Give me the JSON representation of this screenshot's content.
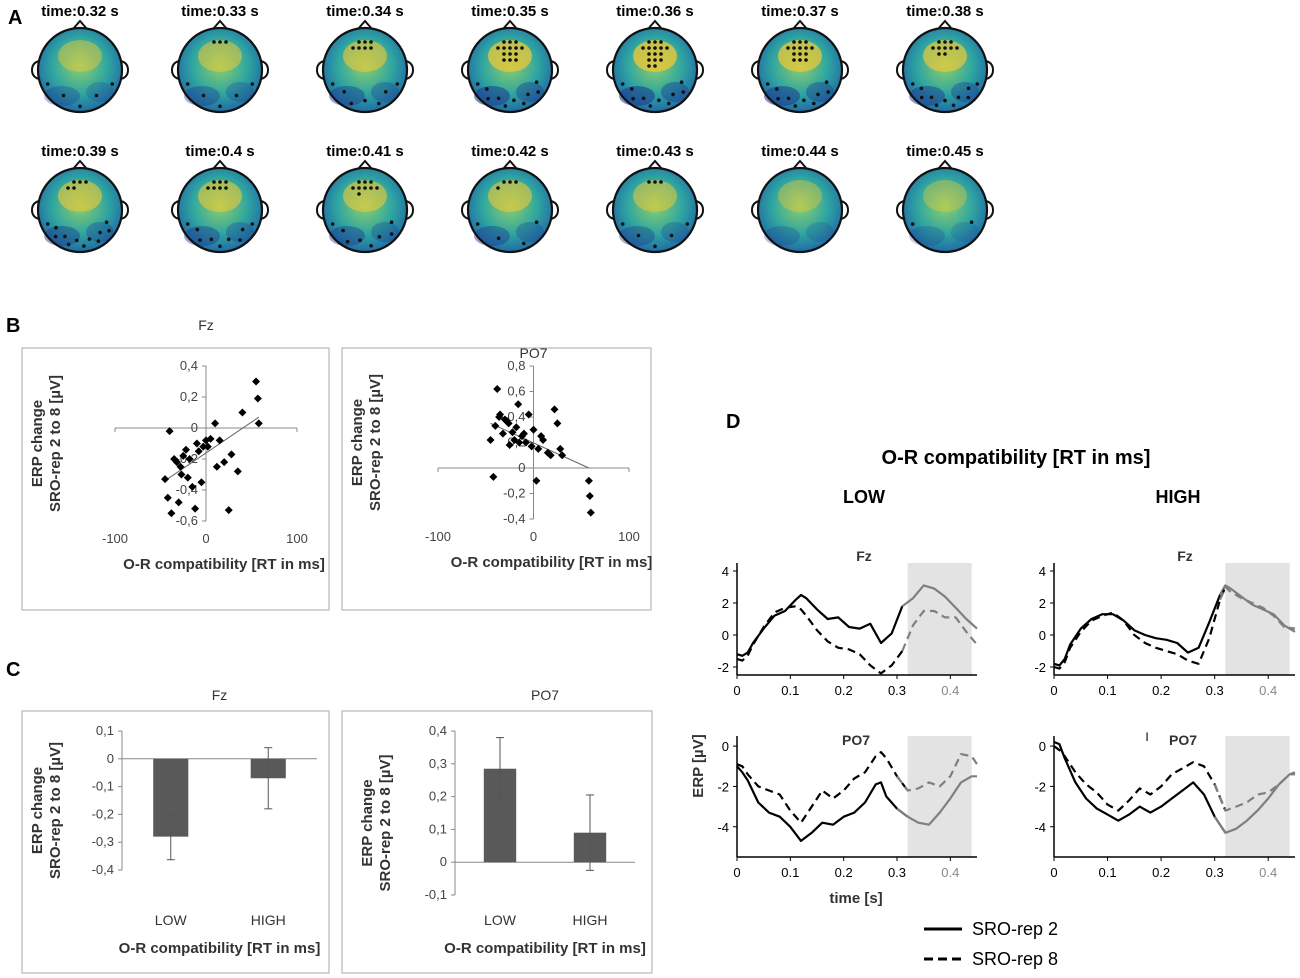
{
  "panel_labels": {
    "a": "A",
    "b": "B",
    "c": "C",
    "d": "D"
  },
  "colors": {
    "bar": "#595959",
    "shade": "#e3e3e3",
    "line": "#000000",
    "gray_line": "#7f7f7f",
    "border": "#aaaaaa",
    "topo_dark": "#1d3a8f",
    "topo_mid": "#2fa6a0",
    "topo_light": "#e8c73a",
    "dot": "#111111"
  },
  "chart_data": [
    {
      "id": "topomaps",
      "type": "heatmap",
      "description_units": "seconds",
      "titles": [
        "time:0.32 s",
        "time:0.33 s",
        "time:0.34 s",
        "time:0.35 s",
        "time:0.36 s",
        "time:0.37 s",
        "time:0.38 s",
        "time:0.39 s",
        "time:0.4 s",
        "time:0.41 s",
        "time:0.42 s",
        "time:0.43 s",
        "time:0.44 s",
        "time:0.45 s"
      ],
      "intensity": [
        0.35,
        0.45,
        0.6,
        0.8,
        0.85,
        0.8,
        0.7,
        0.6,
        0.55,
        0.55,
        0.55,
        0.45,
        0.25,
        0.2
      ],
      "frontal_electrodes": [
        0,
        3,
        7,
        14,
        16,
        14,
        10,
        5,
        7,
        9,
        4,
        3,
        0,
        0
      ],
      "posterior_electrodes": [
        5,
        5,
        7,
        10,
        10,
        10,
        11,
        12,
        9,
        8,
        4,
        5,
        0,
        2
      ]
    },
    {
      "id": "scatter_fz",
      "type": "scatter",
      "title": "Fz",
      "xlabel": "O-R compatibility [RT in ms]",
      "ylabel": [
        "ERP change",
        "SRO-rep 2 to 8 [µV]"
      ],
      "xlim": [
        -100,
        100
      ],
      "ylim": [
        -0.6,
        0.4
      ],
      "xticks": [
        -100,
        0,
        100
      ],
      "xtick_labels": [
        "-100",
        "0",
        "100"
      ],
      "yticks": [
        -0.6,
        -0.4,
        -0.2,
        0,
        0.2,
        0.4
      ],
      "ytick_labels": [
        "-0,6",
        "-0,4",
        "-0,2",
        "0",
        "0,2",
        "0,4"
      ],
      "x": [
        -45,
        -42,
        -40,
        -38,
        -35,
        -32,
        -30,
        -28,
        -27,
        -25,
        -22,
        -20,
        -18,
        -15,
        -12,
        -10,
        -8,
        -5,
        -3,
        0,
        2,
        5,
        10,
        12,
        15,
        20,
        25,
        28,
        35,
        40,
        55,
        57,
        58
      ],
      "y": [
        -0.33,
        -0.45,
        -0.02,
        -0.55,
        -0.2,
        -0.22,
        -0.48,
        -0.25,
        -0.3,
        -0.18,
        -0.14,
        -0.32,
        -0.2,
        -0.38,
        -0.52,
        -0.1,
        -0.15,
        -0.35,
        -0.12,
        -0.08,
        -0.12,
        -0.07,
        0.03,
        -0.25,
        -0.08,
        -0.22,
        -0.53,
        -0.17,
        -0.28,
        0.1,
        0.3,
        0.19,
        0.03
      ],
      "fit": {
        "x": [
          -45,
          58
        ],
        "y": [
          -0.34,
          0.07
        ]
      }
    },
    {
      "id": "scatter_po7",
      "type": "scatter",
      "title": "PO7",
      "xlabel": "O-R compatibility [RT in ms]",
      "ylabel": [
        "ERP change",
        "SRO-rep 2 to 8 [µV]"
      ],
      "xlim": [
        -100,
        100
      ],
      "ylim": [
        -0.4,
        0.8
      ],
      "xticks": [
        -100,
        0,
        100
      ],
      "xtick_labels": [
        "-100",
        "0",
        "100"
      ],
      "yticks": [
        -0.4,
        -0.2,
        0,
        0.2,
        0.4,
        0.6,
        0.8
      ],
      "ytick_labels": [
        "-0,4",
        "-0,2",
        "0",
        "0,2",
        "0,4",
        "0,6",
        "0,8"
      ],
      "x": [
        -45,
        -42,
        -40,
        -38,
        -36,
        -35,
        -32,
        -30,
        -28,
        -26,
        -25,
        -22,
        -20,
        -18,
        -16,
        -15,
        -12,
        -10,
        -8,
        -5,
        -2,
        0,
        3,
        5,
        8,
        10,
        15,
        18,
        22,
        25,
        28,
        30,
        58,
        59,
        60
      ],
      "y": [
        0.22,
        -0.07,
        0.33,
        0.62,
        0.4,
        0.42,
        0.27,
        0.38,
        0.37,
        0.35,
        0.18,
        0.28,
        0.22,
        0.32,
        0.5,
        0.2,
        0.25,
        0.27,
        0.2,
        0.42,
        0.17,
        0.3,
        -0.1,
        0.15,
        0.25,
        0.22,
        0.12,
        0.1,
        0.46,
        0.35,
        0.15,
        0.1,
        -0.1,
        -0.22,
        -0.35
      ],
      "fit": {
        "x": [
          -45,
          58
        ],
        "y": [
          0.35,
          0.0
        ]
      }
    },
    {
      "id": "bars_fz",
      "type": "bar",
      "title": "Fz",
      "xlabel": "O-R compatibility [RT in ms]",
      "ylabel": [
        "ERP change",
        "SRO-rep 2 to 8 [µV]"
      ],
      "categories": [
        "LOW",
        "HIGH"
      ],
      "values": [
        -0.28,
        -0.07
      ],
      "errors": [
        0.083,
        0.11
      ],
      "ylim": [
        -0.4,
        0.1
      ],
      "yticks": [
        -0.4,
        -0.3,
        -0.2,
        -0.1,
        0,
        0.1
      ],
      "ytick_labels": [
        "-0,4",
        "-0,3",
        "-0,2",
        "-0,1",
        "0",
        "0,1"
      ]
    },
    {
      "id": "bars_po7",
      "type": "bar",
      "title": "PO7",
      "xlabel": "O-R compatibility [RT in ms]",
      "ylabel": [
        "ERP change",
        "SRO-rep 2 to 8 [µV]"
      ],
      "categories": [
        "LOW",
        "HIGH"
      ],
      "values": [
        0.285,
        0.09
      ],
      "errors": [
        0.095,
        0.115
      ],
      "ylim": [
        -0.1,
        0.4
      ],
      "yticks": [
        -0.1,
        0,
        0.1,
        0.2,
        0.3,
        0.4
      ],
      "ytick_labels": [
        "-0,1",
        "0",
        "0,1",
        "0,2",
        "0,3",
        "0,4"
      ]
    },
    {
      "id": "erp_low_fz",
      "type": "line",
      "title": "Fz",
      "xlim": [
        0,
        0.45
      ],
      "ylim": [
        -2.5,
        4.5
      ],
      "yticks": [
        -2,
        0,
        2,
        4
      ],
      "ytick_labels": [
        "-2",
        "0",
        "2",
        "4"
      ],
      "xticks": [
        0,
        0.1,
        0.2,
        0.3,
        0.4
      ],
      "xtick_labels": [
        "0",
        "0.1",
        "0.2",
        "0.3",
        "0.4"
      ],
      "shade": [
        0.32,
        0.44
      ],
      "series": [
        {
          "name": "SRO-rep 2",
          "x": [
            0,
            0.01,
            0.02,
            0.03,
            0.05,
            0.07,
            0.09,
            0.11,
            0.12,
            0.13,
            0.15,
            0.17,
            0.19,
            0.21,
            0.23,
            0.25,
            0.27,
            0.29,
            0.31,
            0.33,
            0.35,
            0.37,
            0.39,
            0.41,
            0.43,
            0.45
          ],
          "y": [
            -1.2,
            -1.3,
            -1.1,
            -0.5,
            0.4,
            1.2,
            1.5,
            2.2,
            2.5,
            2.3,
            1.6,
            1.0,
            1.1,
            0.5,
            0.4,
            0.7,
            -0.5,
            0.1,
            1.8,
            2.3,
            3.1,
            2.9,
            2.4,
            1.7,
            1.0,
            0.4
          ]
        },
        {
          "name": "SRO-rep 8",
          "x": [
            0,
            0.01,
            0.02,
            0.03,
            0.05,
            0.07,
            0.09,
            0.11,
            0.12,
            0.13,
            0.15,
            0.17,
            0.19,
            0.21,
            0.23,
            0.25,
            0.27,
            0.29,
            0.31,
            0.33,
            0.35,
            0.37,
            0.39,
            0.41,
            0.43,
            0.45
          ],
          "y": [
            -1.5,
            -1.6,
            -1.3,
            -0.6,
            0.5,
            1.4,
            1.7,
            1.8,
            1.6,
            1.2,
            0.3,
            -0.4,
            -0.8,
            -0.9,
            -1.2,
            -1.9,
            -2.4,
            -1.9,
            -1.0,
            0.6,
            1.5,
            1.5,
            1.1,
            1.1,
            0.2,
            -0.6
          ]
        }
      ]
    },
    {
      "id": "erp_high_fz",
      "type": "line",
      "title": "Fz",
      "xlim": [
        0,
        0.45
      ],
      "ylim": [
        -2.5,
        4.5
      ],
      "yticks": [
        -2,
        0,
        2,
        4
      ],
      "ytick_labels": [
        "-2",
        "0",
        "2",
        "4"
      ],
      "xticks": [
        0,
        0.1,
        0.2,
        0.3,
        0.4
      ],
      "xtick_labels": [
        "0",
        "0.1",
        "0.2",
        "0.3",
        "0.4"
      ],
      "shade": [
        0.32,
        0.44
      ],
      "series": [
        {
          "name": "SRO-rep 2",
          "x": [
            0,
            0.01,
            0.02,
            0.03,
            0.05,
            0.07,
            0.09,
            0.11,
            0.13,
            0.15,
            0.17,
            0.19,
            0.21,
            0.23,
            0.25,
            0.27,
            0.29,
            0.31,
            0.32,
            0.33,
            0.35,
            0.37,
            0.39,
            0.41,
            0.43,
            0.45
          ],
          "y": [
            -1.8,
            -1.9,
            -1.5,
            -0.6,
            0.4,
            1.0,
            1.3,
            1.3,
            0.9,
            0.3,
            0.0,
            -0.2,
            -0.3,
            -0.5,
            -1.1,
            -0.8,
            0.8,
            2.5,
            3.1,
            2.9,
            2.4,
            1.9,
            1.6,
            1.3,
            0.6,
            0.2
          ]
        },
        {
          "name": "SRO-rep 8",
          "x": [
            0,
            0.01,
            0.02,
            0.03,
            0.05,
            0.07,
            0.09,
            0.11,
            0.13,
            0.15,
            0.17,
            0.19,
            0.21,
            0.23,
            0.25,
            0.27,
            0.29,
            0.31,
            0.32,
            0.33,
            0.35,
            0.37,
            0.39,
            0.41,
            0.43,
            0.45
          ],
          "y": [
            -2.0,
            -2.1,
            -1.7,
            -0.8,
            0.2,
            0.9,
            1.2,
            1.4,
            0.9,
            0.0,
            -0.5,
            -0.8,
            -1.0,
            -1.2,
            -1.6,
            -1.8,
            -0.2,
            2.2,
            3.0,
            2.7,
            2.3,
            2.0,
            1.7,
            1.2,
            0.5,
            0.4
          ]
        }
      ]
    },
    {
      "id": "erp_low_po7",
      "type": "line",
      "title": "PO7",
      "xlim": [
        0,
        0.45
      ],
      "ylim": [
        -5.5,
        0.5
      ],
      "yticks": [
        -4,
        -2,
        0
      ],
      "ytick_labels": [
        "-4",
        "-2",
        "0"
      ],
      "xticks": [
        0,
        0.1,
        0.2,
        0.3,
        0.4
      ],
      "xtick_labels": [
        "0",
        "0.1",
        "0.2",
        "0.3",
        "0.4"
      ],
      "shade": [
        0.32,
        0.44
      ],
      "series": [
        {
          "name": "SRO-rep 2",
          "x": [
            0,
            0.01,
            0.02,
            0.04,
            0.06,
            0.08,
            0.1,
            0.12,
            0.14,
            0.16,
            0.18,
            0.2,
            0.22,
            0.24,
            0.26,
            0.27,
            0.28,
            0.3,
            0.32,
            0.34,
            0.36,
            0.38,
            0.4,
            0.42,
            0.44,
            0.45
          ],
          "y": [
            -1.0,
            -1.3,
            -1.7,
            -2.8,
            -3.3,
            -3.5,
            -4.0,
            -4.7,
            -4.3,
            -3.8,
            -3.9,
            -3.5,
            -3.3,
            -2.8,
            -1.9,
            -1.8,
            -2.5,
            -3.1,
            -3.5,
            -3.8,
            -3.9,
            -3.3,
            -2.6,
            -1.8,
            -1.5,
            -1.5
          ]
        },
        {
          "name": "SRO-rep 8",
          "x": [
            0,
            0.01,
            0.02,
            0.04,
            0.06,
            0.08,
            0.1,
            0.12,
            0.14,
            0.16,
            0.18,
            0.2,
            0.22,
            0.24,
            0.26,
            0.27,
            0.28,
            0.3,
            0.32,
            0.34,
            0.36,
            0.38,
            0.4,
            0.42,
            0.44,
            0.45
          ],
          "y": [
            -0.9,
            -1.0,
            -1.4,
            -2.0,
            -2.2,
            -2.4,
            -3.2,
            -3.8,
            -3.0,
            -2.2,
            -2.6,
            -2.2,
            -1.6,
            -1.3,
            -0.5,
            -0.3,
            -0.6,
            -1.5,
            -2.2,
            -2.1,
            -1.8,
            -2.0,
            -1.5,
            -0.4,
            -0.5,
            -0.9
          ]
        }
      ]
    },
    {
      "id": "erp_high_po7",
      "type": "line",
      "title": "PO7",
      "xlim": [
        0,
        0.45
      ],
      "ylim": [
        -5.5,
        0.5
      ],
      "yticks": [
        -4,
        -2,
        0
      ],
      "ytick_labels": [
        "-4",
        "-2",
        "0"
      ],
      "xticks": [
        0,
        0.1,
        0.2,
        0.3,
        0.4
      ],
      "xtick_labels": [
        "0",
        "0.1",
        "0.2",
        "0.3",
        "0.4"
      ],
      "shade": [
        0.32,
        0.44
      ],
      "xlabel": "",
      "marker": "I",
      "series": [
        {
          "name": "SRO-rep 2",
          "x": [
            0,
            0.01,
            0.02,
            0.04,
            0.06,
            0.08,
            0.1,
            0.12,
            0.14,
            0.16,
            0.18,
            0.2,
            0.22,
            0.24,
            0.26,
            0.28,
            0.3,
            0.32,
            0.34,
            0.36,
            0.38,
            0.4,
            0.42,
            0.44,
            0.45
          ],
          "y": [
            0.2,
            0.1,
            -0.6,
            -1.8,
            -2.6,
            -3.1,
            -3.4,
            -3.7,
            -3.4,
            -3.0,
            -3.3,
            -3.0,
            -2.6,
            -2.2,
            -1.8,
            -2.4,
            -3.5,
            -4.3,
            -4.1,
            -3.7,
            -3.2,
            -2.6,
            -1.9,
            -1.4,
            -1.4
          ]
        },
        {
          "name": "SRO-rep 8",
          "x": [
            0,
            0.01,
            0.02,
            0.04,
            0.06,
            0.08,
            0.1,
            0.12,
            0.14,
            0.16,
            0.18,
            0.2,
            0.22,
            0.24,
            0.26,
            0.28,
            0.3,
            0.32,
            0.34,
            0.36,
            0.38,
            0.4,
            0.42,
            0.44,
            0.45
          ],
          "y": [
            0.0,
            -0.2,
            -0.5,
            -1.3,
            -1.9,
            -2.3,
            -2.9,
            -3.2,
            -2.7,
            -2.1,
            -2.4,
            -2.0,
            -1.4,
            -1.1,
            -0.8,
            -1.0,
            -1.9,
            -3.2,
            -3.0,
            -2.8,
            -2.4,
            -2.3,
            -1.9,
            -1.4,
            -1.3
          ]
        }
      ]
    }
  ],
  "panel_d": {
    "title": "O-R compatibility [RT in ms]",
    "col_low": "LOW",
    "col_high": "HIGH",
    "ylabel": "ERP [µV]",
    "xlabel": "time [s]",
    "legend": [
      "SRO-rep 2",
      "SRO-rep 8"
    ]
  }
}
